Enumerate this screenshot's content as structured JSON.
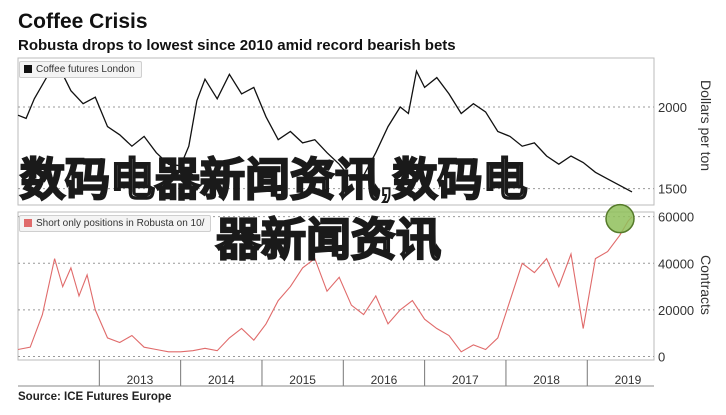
{
  "header": {
    "title": "Coffee Crisis",
    "subtitle": "Robusta drops to lowest since 2010 amid record bearish bets"
  },
  "footer": {
    "source": "Source: ICE Futures Europe"
  },
  "overlay": {
    "line1": "数码电器新闻资讯,数码电",
    "line2": "器新闻资讯"
  },
  "colors": {
    "price": "#111111",
    "positions": "#e06b6b",
    "highlight": "#8fbf5a"
  },
  "chart_data": [
    {
      "type": "line",
      "legend": "Coffee futures London",
      "ylabel": "Dollars per ton",
      "yticks": [
        1500,
        2000
      ],
      "ylim": [
        1400,
        2300
      ],
      "x_start": 2012.0,
      "x_end": 2019.55,
      "series": [
        {
          "name": "Coffee futures London",
          "x": [
            2012.0,
            2012.1,
            2012.2,
            2012.35,
            2012.5,
            2012.65,
            2012.8,
            2012.95,
            2013.1,
            2013.25,
            2013.4,
            2013.55,
            2013.7,
            2013.85,
            2014.0,
            2014.1,
            2014.2,
            2014.3,
            2014.45,
            2014.6,
            2014.75,
            2014.9,
            2015.05,
            2015.2,
            2015.35,
            2015.5,
            2015.65,
            2015.8,
            2015.95,
            2016.1,
            2016.25,
            2016.4,
            2016.55,
            2016.7,
            2016.8,
            2016.9,
            2017.0,
            2017.15,
            2017.3,
            2017.45,
            2017.6,
            2017.75,
            2017.9,
            2018.05,
            2018.2,
            2018.35,
            2018.5,
            2018.65,
            2018.8,
            2018.95,
            2019.1,
            2019.25,
            2019.4,
            2019.55
          ],
          "values": [
            1950,
            1930,
            2050,
            2180,
            2250,
            2100,
            2020,
            2060,
            1880,
            1830,
            1760,
            1820,
            1720,
            1650,
            1640,
            1760,
            2040,
            2170,
            2050,
            2200,
            2080,
            2120,
            1940,
            1800,
            1850,
            1780,
            1800,
            1720,
            1650,
            1560,
            1580,
            1720,
            1880,
            2000,
            1960,
            2220,
            2120,
            2180,
            2080,
            1960,
            2020,
            1970,
            1850,
            1820,
            1760,
            1780,
            1700,
            1650,
            1700,
            1660,
            1600,
            1560,
            1520,
            1480
          ]
        }
      ]
    },
    {
      "type": "area",
      "legend": "Short only positions in Robusta on 10/",
      "ylabel": "Contracts",
      "yticks": [
        0,
        20000,
        40000,
        60000
      ],
      "ylim": [
        -1500,
        62000
      ],
      "xticks": [
        "2013",
        "2014",
        "2015",
        "2016",
        "2017",
        "2018",
        "2019"
      ],
      "x_start": 2012.0,
      "x_end": 2019.55,
      "series": [
        {
          "name": "Short only positions in Robusta on 10/",
          "x": [
            2012.0,
            2012.15,
            2012.3,
            2012.45,
            2012.55,
            2012.65,
            2012.75,
            2012.85,
            2012.95,
            2013.1,
            2013.25,
            2013.4,
            2013.55,
            2013.7,
            2013.85,
            2014.0,
            2014.15,
            2014.3,
            2014.45,
            2014.6,
            2014.75,
            2014.9,
            2015.05,
            2015.2,
            2015.35,
            2015.5,
            2015.65,
            2015.8,
            2015.95,
            2016.1,
            2016.25,
            2016.4,
            2016.55,
            2016.7,
            2016.85,
            2017.0,
            2017.15,
            2017.3,
            2017.45,
            2017.6,
            2017.75,
            2017.9,
            2018.05,
            2018.2,
            2018.35,
            2018.5,
            2018.65,
            2018.8,
            2018.95,
            2019.1,
            2019.25,
            2019.4,
            2019.5,
            2019.55
          ],
          "values": [
            3000,
            4000,
            18000,
            42000,
            30000,
            38000,
            26000,
            35000,
            20000,
            8000,
            6000,
            9000,
            4000,
            3000,
            2000,
            2000,
            2500,
            3500,
            2500,
            8000,
            12000,
            7000,
            14000,
            24000,
            30000,
            38000,
            42000,
            28000,
            34000,
            22000,
            18000,
            26000,
            14000,
            20000,
            24000,
            16000,
            12000,
            9000,
            2000,
            5000,
            3000,
            8000,
            24000,
            40000,
            36000,
            42000,
            30000,
            44000,
            12000,
            42000,
            45000,
            52000,
            58000,
            60000
          ]
        }
      ]
    }
  ]
}
